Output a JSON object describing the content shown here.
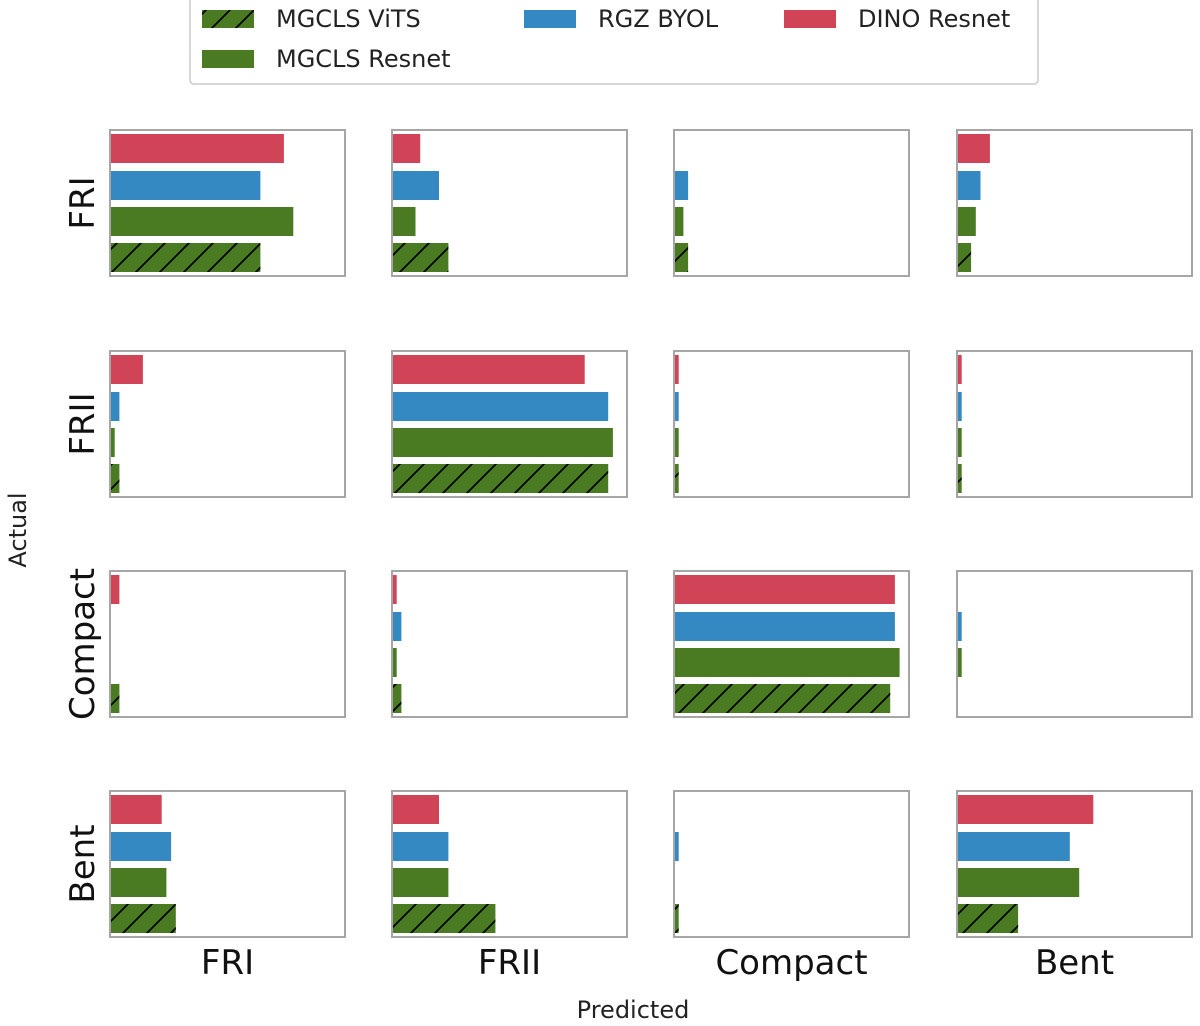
{
  "chart_data": {
    "type": "bar",
    "subtype": "confusion-matrix-small-multiples",
    "xlabel": "Predicted",
    "ylabel": "Actual",
    "rows": [
      "FRI",
      "FRII",
      "Compact",
      "Bent"
    ],
    "cols": [
      "FRI",
      "FRII",
      "Compact",
      "Bent"
    ],
    "xlim": [
      0,
      1
    ],
    "grid": false,
    "legend_position": "top",
    "legend": [
      {
        "name": "MGCLS ViTS",
        "color": "#4a7b23",
        "hatch": true
      },
      {
        "name": "RGZ BYOL",
        "color": "#3589c2",
        "hatch": false
      },
      {
        "name": "DINO Resnet",
        "color": "#d14458",
        "hatch": false
      },
      {
        "name": "MGCLS Resnet",
        "color": "#4a7b23",
        "hatch": false
      }
    ],
    "series_order_top_to_bottom": [
      "DINO Resnet",
      "RGZ BYOL",
      "MGCLS Resnet",
      "MGCLS ViTS"
    ],
    "values": {
      "FRI": {
        "FRI": {
          "DINO Resnet": 0.74,
          "RGZ BYOL": 0.64,
          "MGCLS Resnet": 0.78,
          "MGCLS ViTS": 0.64
        },
        "FRII": {
          "DINO Resnet": 0.12,
          "RGZ BYOL": 0.2,
          "MGCLS Resnet": 0.1,
          "MGCLS ViTS": 0.24
        },
        "Compact": {
          "DINO Resnet": 0.0,
          "RGZ BYOL": 0.06,
          "MGCLS Resnet": 0.04,
          "MGCLS ViTS": 0.06
        },
        "Bent": {
          "DINO Resnet": 0.14,
          "RGZ BYOL": 0.1,
          "MGCLS Resnet": 0.08,
          "MGCLS ViTS": 0.06
        }
      },
      "FRII": {
        "FRI": {
          "DINO Resnet": 0.14,
          "RGZ BYOL": 0.04,
          "MGCLS Resnet": 0.02,
          "MGCLS ViTS": 0.04
        },
        "FRII": {
          "DINO Resnet": 0.82,
          "RGZ BYOL": 0.92,
          "MGCLS Resnet": 0.94,
          "MGCLS ViTS": 0.92
        },
        "Compact": {
          "DINO Resnet": 0.02,
          "RGZ BYOL": 0.02,
          "MGCLS Resnet": 0.02,
          "MGCLS ViTS": 0.02
        },
        "Bent": {
          "DINO Resnet": 0.02,
          "RGZ BYOL": 0.02,
          "MGCLS Resnet": 0.02,
          "MGCLS ViTS": 0.02
        }
      },
      "Compact": {
        "FRI": {
          "DINO Resnet": 0.04,
          "RGZ BYOL": 0.0,
          "MGCLS Resnet": 0.0,
          "MGCLS ViTS": 0.04
        },
        "FRII": {
          "DINO Resnet": 0.02,
          "RGZ BYOL": 0.04,
          "MGCLS Resnet": 0.02,
          "MGCLS ViTS": 0.04
        },
        "Compact": {
          "DINO Resnet": 0.94,
          "RGZ BYOL": 0.94,
          "MGCLS Resnet": 0.96,
          "MGCLS ViTS": 0.92
        },
        "Bent": {
          "DINO Resnet": 0.0,
          "RGZ BYOL": 0.02,
          "MGCLS Resnet": 0.02,
          "MGCLS ViTS": 0.0
        }
      },
      "Bent": {
        "FRI": {
          "DINO Resnet": 0.22,
          "RGZ BYOL": 0.26,
          "MGCLS Resnet": 0.24,
          "MGCLS ViTS": 0.28
        },
        "FRII": {
          "DINO Resnet": 0.2,
          "RGZ BYOL": 0.24,
          "MGCLS Resnet": 0.24,
          "MGCLS ViTS": 0.44
        },
        "Compact": {
          "DINO Resnet": 0.0,
          "RGZ BYOL": 0.02,
          "MGCLS Resnet": 0.0,
          "MGCLS ViTS": 0.02
        },
        "Bent": {
          "DINO Resnet": 0.58,
          "RGZ BYOL": 0.48,
          "MGCLS Resnet": 0.52,
          "MGCLS ViTS": 0.26
        }
      }
    }
  }
}
